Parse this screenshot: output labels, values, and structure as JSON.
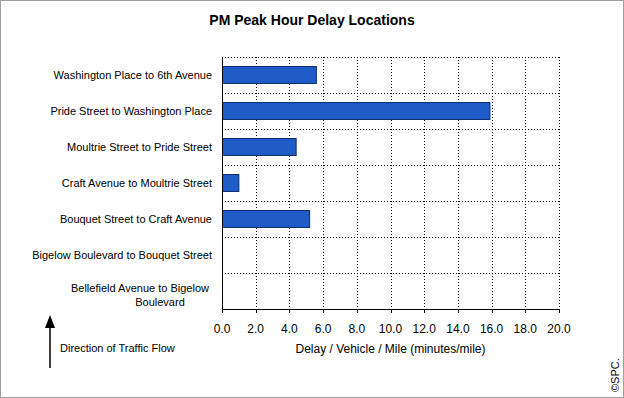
{
  "chart_data": {
    "type": "bar",
    "orientation": "horizontal",
    "title": "PM Peak Hour Delay Locations",
    "xlabel": "Delay / Vehicle / Mile (minutes/mile)",
    "annotations": [
      "Direction of Traffic Flow",
      "©SPC."
    ],
    "categories": [
      "Washington Place to 6th Avenue",
      "Pride Street to Washington Place",
      "Moultrie Street to Pride Street",
      "Craft Avenue to Moultrie Street",
      "Bouquet Street to Craft Avenue",
      "Bigelow Boulevard to Bouquet Street",
      "Bellefield Avenue to Bigelow Boulevard"
    ],
    "values": [
      5.6,
      15.9,
      4.4,
      1.0,
      5.2,
      0,
      0
    ],
    "color": "#1f5cc8",
    "xlim": [
      0,
      20
    ],
    "xticks": [
      {
        "value": 0,
        "label": "0.0"
      },
      {
        "value": 2,
        "label": "2.0"
      },
      {
        "value": 4,
        "label": "4.0"
      },
      {
        "value": 6,
        "label": "6.0"
      },
      {
        "value": 8,
        "label": "8.0"
      },
      {
        "value": 10,
        "label": "10.0"
      },
      {
        "value": 12,
        "label": "12.0"
      },
      {
        "value": 14,
        "label": "14.0"
      },
      {
        "value": 16,
        "label": "16.0"
      },
      {
        "value": 18,
        "label": "18.0"
      },
      {
        "value": 20,
        "label": "20.0"
      }
    ],
    "grid": true
  }
}
